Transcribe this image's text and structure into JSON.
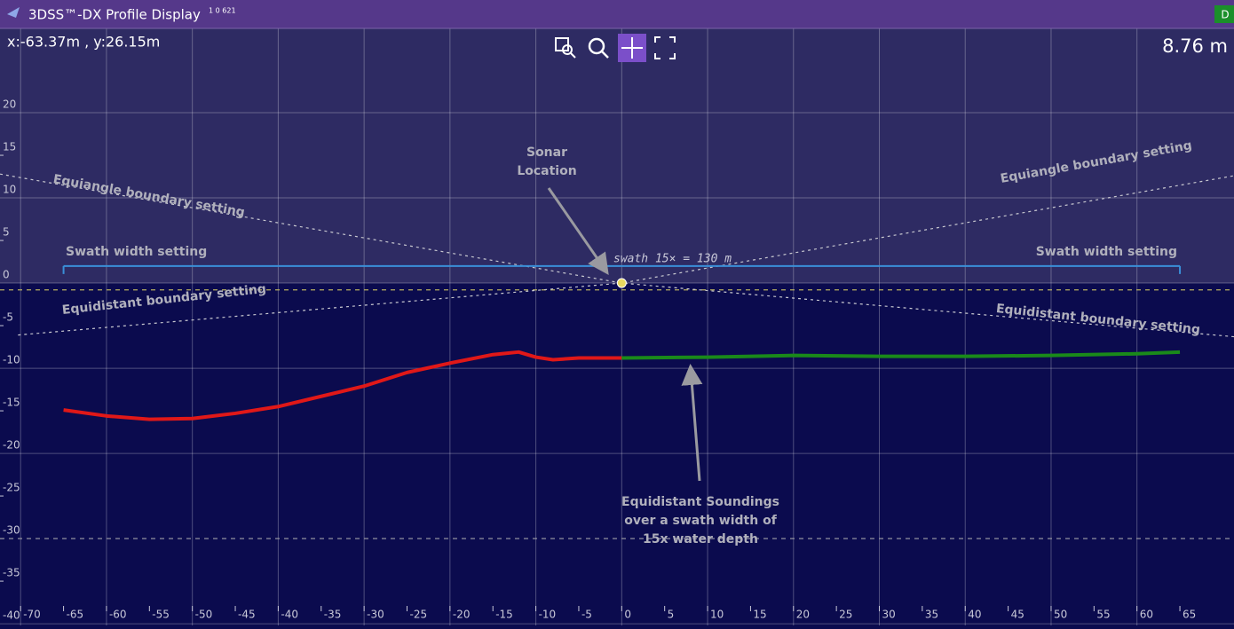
{
  "window": {
    "title": "3DSS™-DX Profile Display",
    "version": "1 0 621",
    "badge": "D"
  },
  "toolbar": {
    "cursor": "x:-63.37m , y:26.15m",
    "range": "8.76 m"
  },
  "chart_data": {
    "type": "line",
    "xlim": [
      -72.4,
      71.3
    ],
    "ylim": [
      -40.2,
      29.9
    ],
    "xticks": [
      -70,
      -65,
      -60,
      -55,
      -50,
      -45,
      -40,
      -35,
      -30,
      -25,
      -20,
      -15,
      -10,
      -5,
      0,
      5,
      10,
      15,
      20,
      25,
      30,
      35,
      40,
      45,
      50,
      55,
      60,
      65
    ],
    "yticks": [
      20,
      15,
      10,
      5,
      0,
      -5,
      -10,
      -15,
      -20,
      -25,
      -30,
      -35,
      -40
    ],
    "grid": true,
    "series": [
      {
        "color": "#e01818",
        "x": [
          -65,
          -60,
          -55,
          -50,
          -45,
          -40,
          -35,
          -30,
          -25,
          -20,
          -15,
          -12,
          -10,
          -8,
          -5,
          0
        ],
        "y": [
          -14.9,
          -15.6,
          -16.0,
          -15.9,
          -15.3,
          -14.5,
          -13.3,
          -12.1,
          -10.5,
          -9.4,
          -8.4,
          -8.1,
          -8.7,
          -9.0,
          -8.8,
          -8.8
        ]
      },
      {
        "color": "#1a8a1a",
        "x": [
          0,
          10,
          20,
          30,
          40,
          50,
          60,
          65
        ],
        "y": [
          -8.8,
          -8.7,
          -8.5,
          -8.6,
          -8.6,
          -8.5,
          -8.3,
          -8.1
        ]
      }
    ],
    "boundaries": [
      {
        "label": "Equiangle boundary setting",
        "x": [
          -72.4,
          0,
          71.3
        ],
        "y": [
          12.8,
          0,
          12.6
        ]
      },
      {
        "label": "Equidistant boundary setting",
        "x": [
          -70.3,
          0,
          71.3
        ],
        "y": [
          -6.1,
          0,
          -6.3
        ]
      }
    ],
    "swath": {
      "label": "Swath width setting",
      "caption": "swath 15× = 130 m",
      "color": "#3a8fd8",
      "x": [
        -65,
        65
      ],
      "y": [
        2,
        2
      ]
    },
    "reference_lines": [
      {
        "y": -0.8,
        "color": "#b8b060"
      },
      {
        "y": -30,
        "color": "#a0a0a8"
      }
    ],
    "sonar": {
      "label": [
        "Sonar",
        "Location"
      ],
      "x": 0,
      "y": 0
    },
    "soundings_note": [
      "Equidistant Soundings",
      "over a swath width of",
      "15x water depth"
    ]
  }
}
